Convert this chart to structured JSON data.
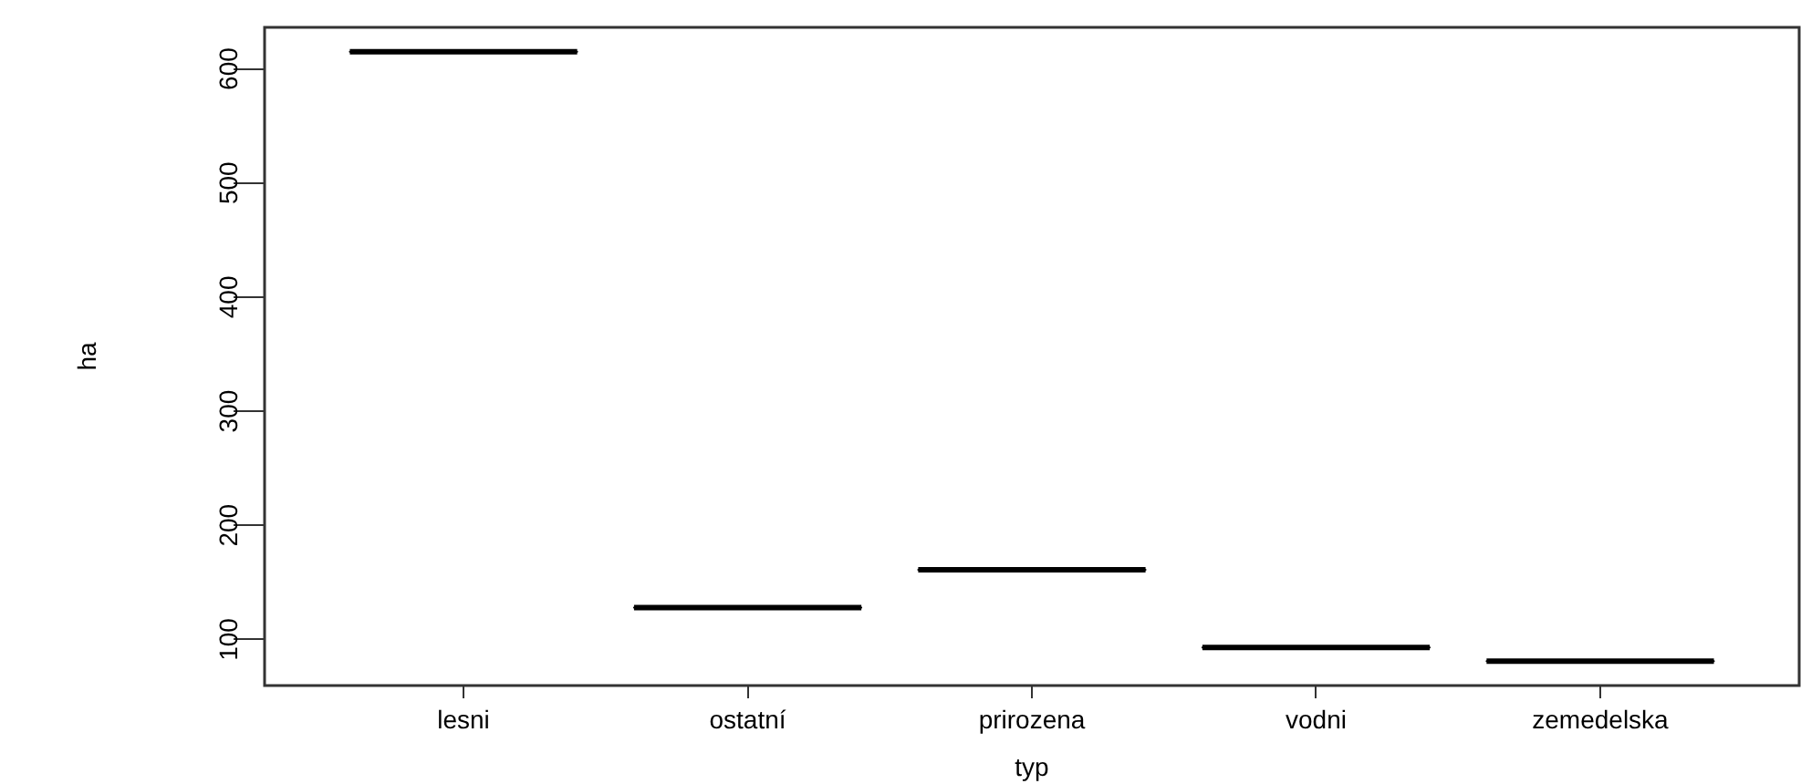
{
  "chart_data": {
    "type": "box",
    "xlabel": "typ",
    "ylabel": "ha",
    "color": "#000000",
    "categories": [
      "lesni",
      "ostatní",
      "prirozena",
      "vodni",
      "zemedelska"
    ],
    "boxes": [
      {
        "low": 615,
        "q1": 615,
        "median": 615,
        "q3": 615,
        "high": 615
      },
      {
        "low": 128,
        "q1": 128,
        "median": 128,
        "q3": 128,
        "high": 128
      },
      {
        "low": 161,
        "q1": 161,
        "median": 161,
        "q3": 161,
        "high": 161
      },
      {
        "low": 93,
        "q1": 93,
        "median": 93,
        "q3": 93,
        "high": 93
      },
      {
        "low": 81,
        "q1": 81,
        "median": 81,
        "q3": 81,
        "high": 81
      }
    ],
    "ylim": [
      59.6,
      636.4
    ],
    "yticks": [
      100,
      200,
      300,
      400,
      500,
      600
    ]
  }
}
